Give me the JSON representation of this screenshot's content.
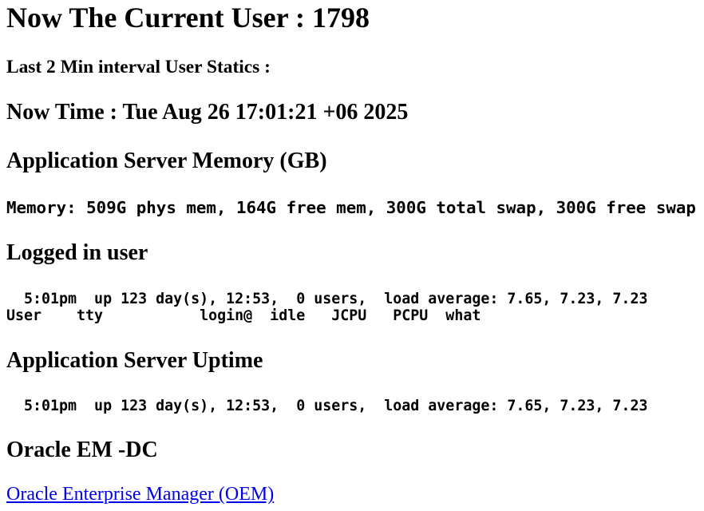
{
  "header": {
    "title": "Now The Current User : 1798",
    "subtitle": "Last 2 Min interval User Statics :",
    "now_time": "Now Time : Tue Aug 26 17:01:21 +06 2025"
  },
  "memory": {
    "heading": "Application Server Memory (GB)",
    "output": "Memory: 509G phys mem, 164G free mem, 300G total swap, 300G free swap"
  },
  "logged_in": {
    "heading": "Logged in user",
    "output": "  5:01pm  up 123 day(s), 12:53,  0 users,  load average: 7.65, 7.23, 7.23\nUser    tty           login@  idle   JCPU   PCPU  what"
  },
  "uptime": {
    "heading": "Application Server Uptime",
    "output": "  5:01pm  up 123 day(s), 12:53,  0 users,  load average: 7.65, 7.23, 7.23"
  },
  "oracle": {
    "heading": "Oracle EM -DC",
    "link_label": "Oracle Enterprise Manager (OEM)"
  },
  "colors": {
    "background": "#FFFFFF",
    "text": "#000000",
    "link": "#0000EE"
  }
}
